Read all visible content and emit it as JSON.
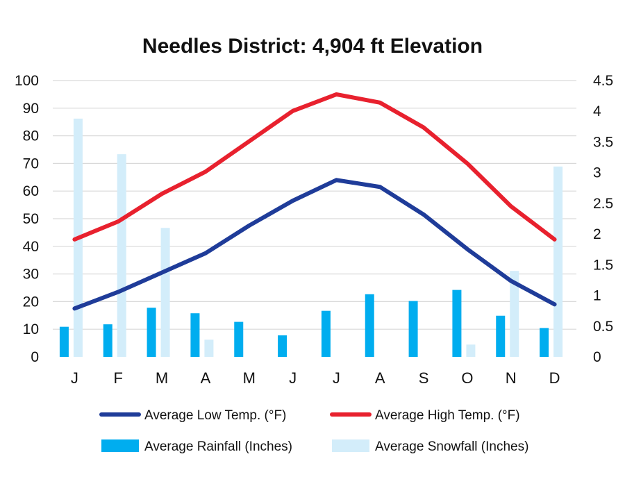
{
  "chart_data": {
    "type": "bar+line",
    "title": "Needles District: 4,904 ft Elevation",
    "categories": [
      "J",
      "F",
      "M",
      "A",
      "M",
      "J",
      "J",
      "A",
      "S",
      "O",
      "N",
      "D"
    ],
    "left_axis": {
      "ylim": [
        0,
        100
      ],
      "ticks": [
        0,
        10,
        20,
        30,
        40,
        50,
        60,
        70,
        80,
        90,
        100
      ],
      "tick_labels": [
        "0",
        "10",
        "20",
        "30",
        "40",
        "50",
        "60",
        "70",
        "80",
        "90",
        "100"
      ]
    },
    "right_axis": {
      "ylim": [
        0,
        4.5
      ],
      "ticks": [
        0,
        0.5,
        1,
        1.5,
        2,
        2.5,
        3,
        3.5,
        4,
        4.5
      ],
      "tick_labels": [
        "0",
        "0.5",
        "1",
        "1.5",
        "2",
        "2.5",
        "3",
        "3.5",
        "4",
        "4.5"
      ]
    },
    "grid": true,
    "legend_position": "bottom",
    "series": [
      {
        "name": "Average Low Temp. (°F)",
        "kind": "line",
        "axis": "left",
        "color": "#1f3c99",
        "values": [
          17.5,
          23.5,
          30.5,
          37.5,
          47.5,
          56.5,
          64,
          61.5,
          51.5,
          39,
          27.5,
          19
        ]
      },
      {
        "name": "Average High Temp. (°F)",
        "kind": "line",
        "axis": "left",
        "color": "#e8212e",
        "values": [
          42.5,
          49,
          59,
          67,
          78,
          89,
          95,
          92,
          83,
          70,
          54.5,
          42.5
        ]
      },
      {
        "name": "Average Rainfall (Inches)",
        "kind": "bar",
        "axis": "right",
        "color": "#00adef",
        "values": [
          0.49,
          0.53,
          0.8,
          0.71,
          0.57,
          0.35,
          0.75,
          1.02,
          0.91,
          1.09,
          0.67,
          0.47
        ]
      },
      {
        "name": "Average Snowfall (Inches)",
        "kind": "bar",
        "axis": "right",
        "color": "#d3edfa",
        "values": [
          3.88,
          3.3,
          2.1,
          0.28,
          0,
          0,
          0,
          0,
          0,
          0.2,
          1.4,
          3.1
        ]
      }
    ]
  }
}
